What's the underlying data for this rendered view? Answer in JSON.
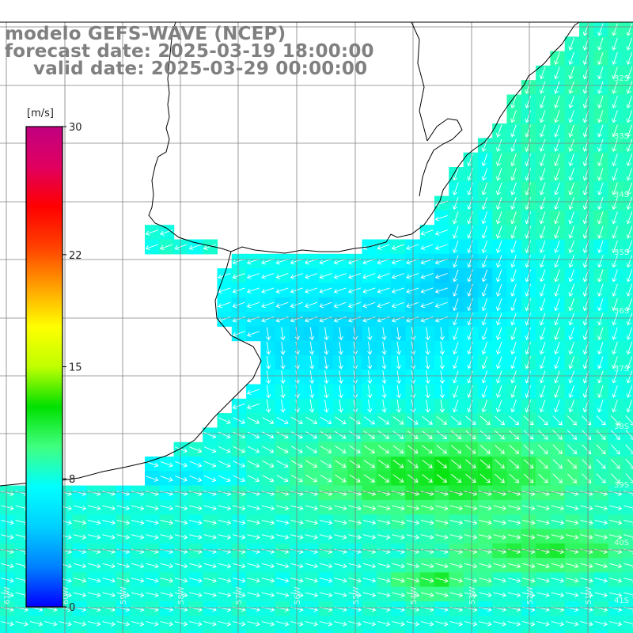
{
  "title": {
    "model": "modelo GEFS-WAVE (NCEP)",
    "forecast": "forecast date: 2025-03-19 18:00:00",
    "valid": "valid date: 2025-03-29 00:00:00"
  },
  "colorbar": {
    "unit": "[m/s]",
    "min": 0,
    "max": 30,
    "tick_values": [
      0,
      8,
      15,
      22,
      30
    ],
    "tick_labels": [
      "0",
      "8",
      "15",
      "22",
      "30"
    ],
    "colors": [
      "#0000ff",
      "#0080ff",
      "#00d0ff",
      "#00ffff",
      "#40ff80",
      "#00e000",
      "#c0ff00",
      "#ffff00",
      "#ffa000",
      "#ff4000",
      "#ff0000",
      "#e00060",
      "#c00080"
    ]
  },
  "grid": {
    "lat_labels": [
      "32S",
      "33S",
      "34S",
      "35S",
      "36S",
      "37S",
      "38S",
      "39S",
      "40S",
      "41S"
    ],
    "lon_labels": [
      "61W",
      "60W",
      "59W",
      "58W",
      "57W",
      "56W",
      "55W",
      "54W",
      "53W",
      "52W",
      "51W"
    ]
  },
  "colors": {
    "land": "#ffffff",
    "coast": "#000000",
    "grid": "#808080",
    "title": "#808080",
    "arrow": "#ffffff"
  }
}
